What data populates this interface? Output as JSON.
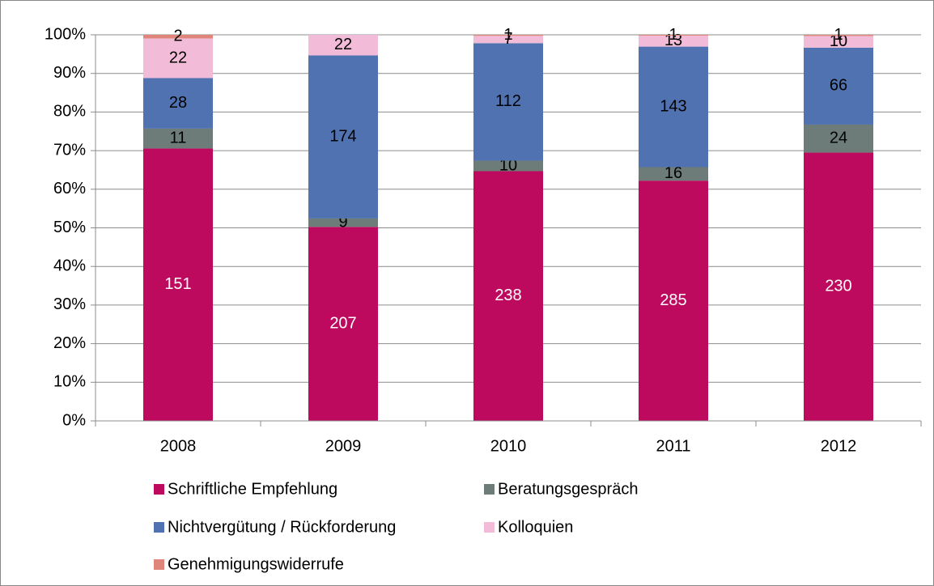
{
  "chart_data": {
    "type": "bar",
    "stacking": "percent",
    "categories": [
      "2008",
      "2009",
      "2010",
      "2011",
      "2012"
    ],
    "series": [
      {
        "name": "Schriftliche Empfehlung",
        "color": "#be0a5e",
        "values": [
          151,
          207,
          238,
          285,
          230
        ]
      },
      {
        "name": "Beratungsgespräch",
        "color": "#6d7c78",
        "values": [
          11,
          9,
          10,
          16,
          24
        ]
      },
      {
        "name": "Nichtvergütung / Rückforderung",
        "color": "#5072b0",
        "values": [
          28,
          174,
          112,
          143,
          66
        ]
      },
      {
        "name": "Kolloquien",
        "color": "#f2bcd8",
        "values": [
          22,
          22,
          7,
          13,
          10
        ]
      },
      {
        "name": "Genehmigungswiderrufe",
        "color": "#e0857a",
        "values": [
          2,
          null,
          1,
          1,
          1
        ]
      }
    ],
    "ylim": [
      0,
      100
    ],
    "yticks": [
      {
        "value": 0,
        "label": "0%"
      },
      {
        "value": 10,
        "label": "10%"
      },
      {
        "value": 20,
        "label": "20%"
      },
      {
        "value": 30,
        "label": "30%"
      },
      {
        "value": 40,
        "label": "40%"
      },
      {
        "value": 50,
        "label": "50%"
      },
      {
        "value": 60,
        "label": "60%"
      },
      {
        "value": 70,
        "label": "70%"
      },
      {
        "value": 80,
        "label": "80%"
      },
      {
        "value": 90,
        "label": "90%"
      },
      {
        "value": 100,
        "label": "100%"
      }
    ],
    "grid": true,
    "legend": "bottom"
  }
}
